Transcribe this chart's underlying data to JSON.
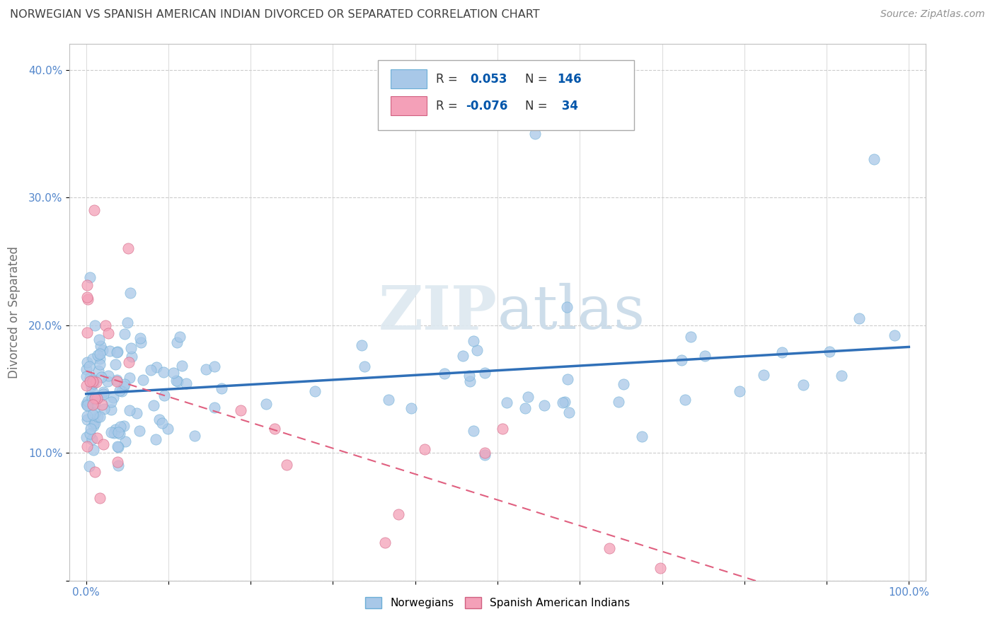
{
  "title": "NORWEGIAN VS SPANISH AMERICAN INDIAN DIVORCED OR SEPARATED CORRELATION CHART",
  "source": "Source: ZipAtlas.com",
  "ylabel": "Divorced or Separated",
  "xlabel": "",
  "xlim": [
    0.0,
    1.0
  ],
  "ylim": [
    0.0,
    0.42
  ],
  "R_norwegian": 0.053,
  "N_norwegian": 146,
  "R_spanish": -0.076,
  "N_spanish": 34,
  "color_norwegian_fill": "#a8c8e8",
  "color_norwegian_edge": "#6baed6",
  "color_spanish_fill": "#f4a0b8",
  "color_spanish_edge": "#d06080",
  "color_norw_line": "#3070b8",
  "color_span_line": "#e06080",
  "watermark_color": "#e8eef4",
  "background_color": "#ffffff",
  "grid_color": "#cccccc",
  "title_color": "#404040",
  "source_color": "#909090",
  "axis_label_color": "#707070",
  "legend_value_color": "#0055aa",
  "tick_label_color": "#5588cc"
}
